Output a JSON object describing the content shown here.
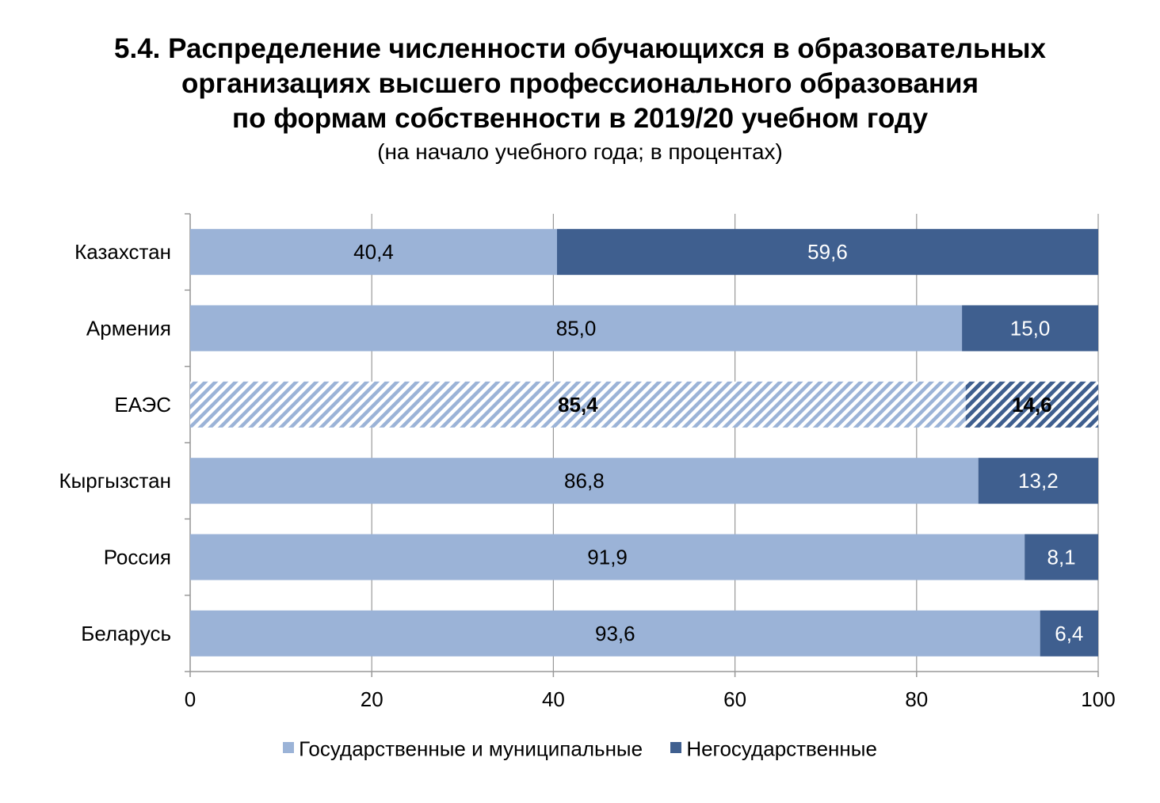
{
  "title_lines": [
    "5.4. Распределение численности обучающихся в образовательных",
    "организациях высшего профессионального образования",
    "по формам собственности в 2019/20 учебном году"
  ],
  "subtitle": "(на начало учебного года; в процентах)",
  "colors": {
    "state": "#9bb3d7",
    "private": "#3f5f8f",
    "axis": "#999999",
    "grid": "#999999"
  },
  "legend": [
    {
      "key": "state",
      "label": "Государственные и муниципальные"
    },
    {
      "key": "private",
      "label": "Негосударственные"
    }
  ],
  "chart_data": {
    "type": "bar",
    "orientation": "horizontal",
    "stacked": true,
    "categories": [
      "Казахстан",
      "Армения",
      "ЕАЭС",
      "Кыргызстан",
      "Россия",
      "Беларусь"
    ],
    "highlighted_category": "ЕАЭС",
    "series": [
      {
        "name": "Государственные и муниципальные",
        "values": [
          40.4,
          85.0,
          85.4,
          86.8,
          91.9,
          93.6
        ]
      },
      {
        "name": "Негосударственные",
        "values": [
          59.6,
          15.0,
          14.6,
          13.2,
          8.1,
          6.4
        ]
      }
    ],
    "labels": [
      [
        "40,4",
        "85,0",
        "85,4",
        "86,8",
        "91,9",
        "93,6"
      ],
      [
        "59,6",
        "15,0",
        "14,6",
        "13,2",
        "8,1",
        "6,4"
      ]
    ],
    "xlim": [
      0,
      100
    ],
    "xticks": [
      "0",
      "20",
      "40",
      "60",
      "80",
      "100"
    ],
    "grid": true,
    "legend_position": "bottom"
  }
}
